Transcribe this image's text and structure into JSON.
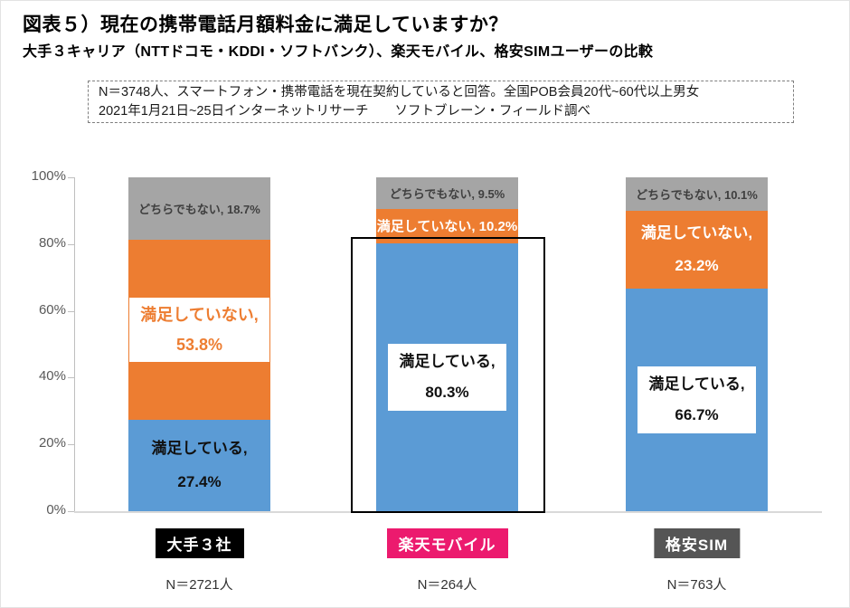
{
  "title": "図表５）現在の携帯電話月額料金に満足していますか？",
  "subtitle": "大手３キャリア（NTTドコモ・KDDI・ソフトバンク）、楽天モバイル、格安SIMユーザーの比較",
  "note": {
    "line1": "N＝3748人、スマートフォン・携帯電話を現在契約していると回答。全国POB会員20代~60代以上男女",
    "line2": "2021年1月21日~25日インターネットリサーチ　　ソフトブレーン・フィールド調べ"
  },
  "colors": {
    "satisfied_blue": "#5B9BD5",
    "not_satisfied_orange": "#ED7D31",
    "neither_gray": "#A5A5A5",
    "axis_line": "#BFBFBF",
    "baseline": "#D9D9D9",
    "tick_label": "#595959",
    "badge_majors_bg": "#000000",
    "badge_rakuten_bg": "#EC1A6E",
    "badge_mvno_bg": "#555555",
    "highlight_border": "#000000"
  },
  "y_axis": {
    "ticks": [
      "100%",
      "80%",
      "60%",
      "40%",
      "20%",
      "0%"
    ],
    "min": 0,
    "max": 100,
    "grid": false
  },
  "chart_data": {
    "type": "bar",
    "subtype": "stacked-percent-column",
    "title": "図表５）現在の携帯電話月額料金に満足していますか？",
    "ylim": [
      0,
      100
    ],
    "category_labels": [
      "大手３社",
      "楽天モバイル",
      "格安SIM"
    ],
    "series": [
      {
        "name": "満足している",
        "values": [
          27.4,
          80.3,
          66.7
        ]
      },
      {
        "name": "満足していない",
        "values": [
          53.8,
          10.2,
          23.2
        ]
      },
      {
        "name": "どちらでもない",
        "values": [
          18.7,
          9.5,
          10.1
        ]
      }
    ],
    "categories": [
      {
        "label": "大手３社",
        "n": "N＝2721人",
        "badge_bg": "#000000",
        "highlighted": false,
        "segments": [
          {
            "series": "満足している",
            "value": 27.4,
            "color": "#5B9BD5",
            "label_lines": [
              "満足している,",
              "27.4%"
            ],
            "label_style": "dark-plain"
          },
          {
            "series": "満足していない",
            "value": 53.8,
            "color": "#ED7D31",
            "label_lines": [
              "満足していない,",
              "53.8%"
            ],
            "label_style": "white-box-orange"
          },
          {
            "series": "どちらでもない",
            "value": 18.7,
            "color": "#A5A5A5",
            "label_lines": [
              "どちらでもない, 18.7%"
            ],
            "label_style": "gray-plain"
          }
        ]
      },
      {
        "label": "楽天モバイル",
        "n": "N＝264人",
        "badge_bg": "#EC1A6E",
        "highlighted": true,
        "segments": [
          {
            "series": "満足している",
            "value": 80.3,
            "color": "#5B9BD5",
            "label_lines": [
              "満足している,",
              "80.3%"
            ],
            "label_style": "white-box-dark"
          },
          {
            "series": "満足していない",
            "value": 10.2,
            "color": "#ED7D31",
            "label_lines": [
              "満足していない, 10.2%"
            ],
            "label_style": "white-plain-sm"
          },
          {
            "series": "どちらでもない",
            "value": 9.5,
            "color": "#A5A5A5",
            "label_lines": [
              "どちらでもない, 9.5%"
            ],
            "label_style": "gray-plain"
          }
        ]
      },
      {
        "label": "格安SIM",
        "n": "N＝763人",
        "badge_bg": "#555555",
        "highlighted": false,
        "segments": [
          {
            "series": "満足している",
            "value": 66.7,
            "color": "#5B9BD5",
            "label_lines": [
              "満足している,",
              "66.7%"
            ],
            "label_style": "white-box-dark"
          },
          {
            "series": "満足していない",
            "value": 23.2,
            "color": "#ED7D31",
            "label_lines": [
              "満足していない,",
              "23.2%"
            ],
            "label_style": "white-plain"
          },
          {
            "series": "どちらでもない",
            "value": 10.1,
            "color": "#A5A5A5",
            "label_lines": [
              "どちらでもない, 10.1%"
            ],
            "label_style": "gray-plain"
          }
        ]
      }
    ]
  }
}
